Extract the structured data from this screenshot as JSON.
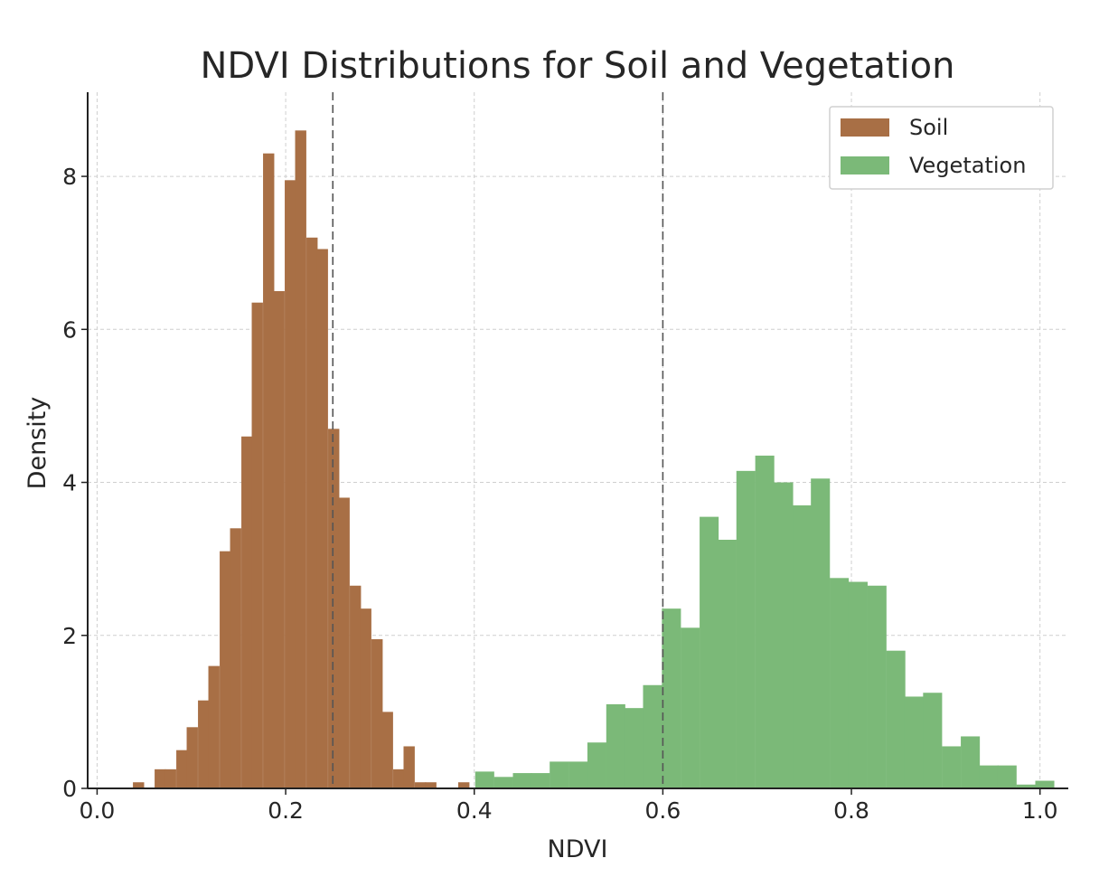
{
  "chart_data": {
    "type": "bar",
    "title": "NDVI Distributions for Soil and Vegetation",
    "xlabel": "NDVI",
    "ylabel": "Density",
    "xlim": [
      -0.01,
      1.03
    ],
    "ylim": [
      0,
      9.1
    ],
    "xticks": [
      {
        "value": 0.0,
        "label": "0.0"
      },
      {
        "value": 0.2,
        "label": "0.2"
      },
      {
        "value": 0.4,
        "label": "0.4"
      },
      {
        "value": 0.6,
        "label": "0.6"
      },
      {
        "value": 0.8,
        "label": "0.8"
      },
      {
        "value": 1.0,
        "label": "1.0"
      }
    ],
    "yticks": [
      {
        "value": 0,
        "label": "0"
      },
      {
        "value": 2,
        "label": "2"
      },
      {
        "value": 4,
        "label": "4"
      },
      {
        "value": 6,
        "label": "6"
      },
      {
        "value": 8,
        "label": "8"
      }
    ],
    "grid": true,
    "legend_position": "top-right",
    "reference_lines": [
      0.25,
      0.6
    ],
    "series": [
      {
        "name": "Soil",
        "color": "#a86f45",
        "bin_width": 0.0115,
        "bins": [
          [
            0.038,
            0.08
          ],
          [
            0.061,
            0.25
          ],
          [
            0.072,
            0.25
          ],
          [
            0.084,
            0.5
          ],
          [
            0.095,
            0.8
          ],
          [
            0.107,
            1.15
          ],
          [
            0.118,
            1.6
          ],
          [
            0.13,
            3.1
          ],
          [
            0.141,
            3.4
          ],
          [
            0.153,
            4.6
          ],
          [
            0.164,
            6.35
          ],
          [
            0.176,
            8.3
          ],
          [
            0.187,
            6.5
          ],
          [
            0.199,
            7.95
          ],
          [
            0.21,
            8.6
          ],
          [
            0.222,
            7.2
          ],
          [
            0.233,
            7.05
          ],
          [
            0.245,
            4.7
          ],
          [
            0.256,
            3.8
          ],
          [
            0.268,
            2.65
          ],
          [
            0.279,
            2.35
          ],
          [
            0.291,
            1.95
          ],
          [
            0.302,
            1.0
          ],
          [
            0.314,
            0.25
          ],
          [
            0.325,
            0.55
          ],
          [
            0.337,
            0.08
          ],
          [
            0.348,
            0.08
          ],
          [
            0.383,
            0.08
          ]
        ]
      },
      {
        "name": "Vegetation",
        "color": "#7bb978",
        "bin_width": 0.0198,
        "bins": [
          [
            0.401,
            0.22
          ],
          [
            0.421,
            0.15
          ],
          [
            0.441,
            0.2
          ],
          [
            0.46,
            0.2
          ],
          [
            0.48,
            0.35
          ],
          [
            0.5,
            0.35
          ],
          [
            0.52,
            0.6
          ],
          [
            0.54,
            1.1
          ],
          [
            0.559,
            1.05
          ],
          [
            0.579,
            1.35
          ],
          [
            0.599,
            2.35
          ],
          [
            0.619,
            2.1
          ],
          [
            0.639,
            3.55
          ],
          [
            0.658,
            3.25
          ],
          [
            0.678,
            4.15
          ],
          [
            0.698,
            4.35
          ],
          [
            0.718,
            4.0
          ],
          [
            0.738,
            3.7
          ],
          [
            0.757,
            4.05
          ],
          [
            0.777,
            2.75
          ],
          [
            0.797,
            2.7
          ],
          [
            0.817,
            2.65
          ],
          [
            0.837,
            1.8
          ],
          [
            0.856,
            1.2
          ],
          [
            0.876,
            1.25
          ],
          [
            0.896,
            0.55
          ],
          [
            0.916,
            0.68
          ],
          [
            0.936,
            0.3
          ],
          [
            0.955,
            0.3
          ],
          [
            0.975,
            0.05
          ],
          [
            0.995,
            0.1
          ]
        ]
      }
    ]
  }
}
